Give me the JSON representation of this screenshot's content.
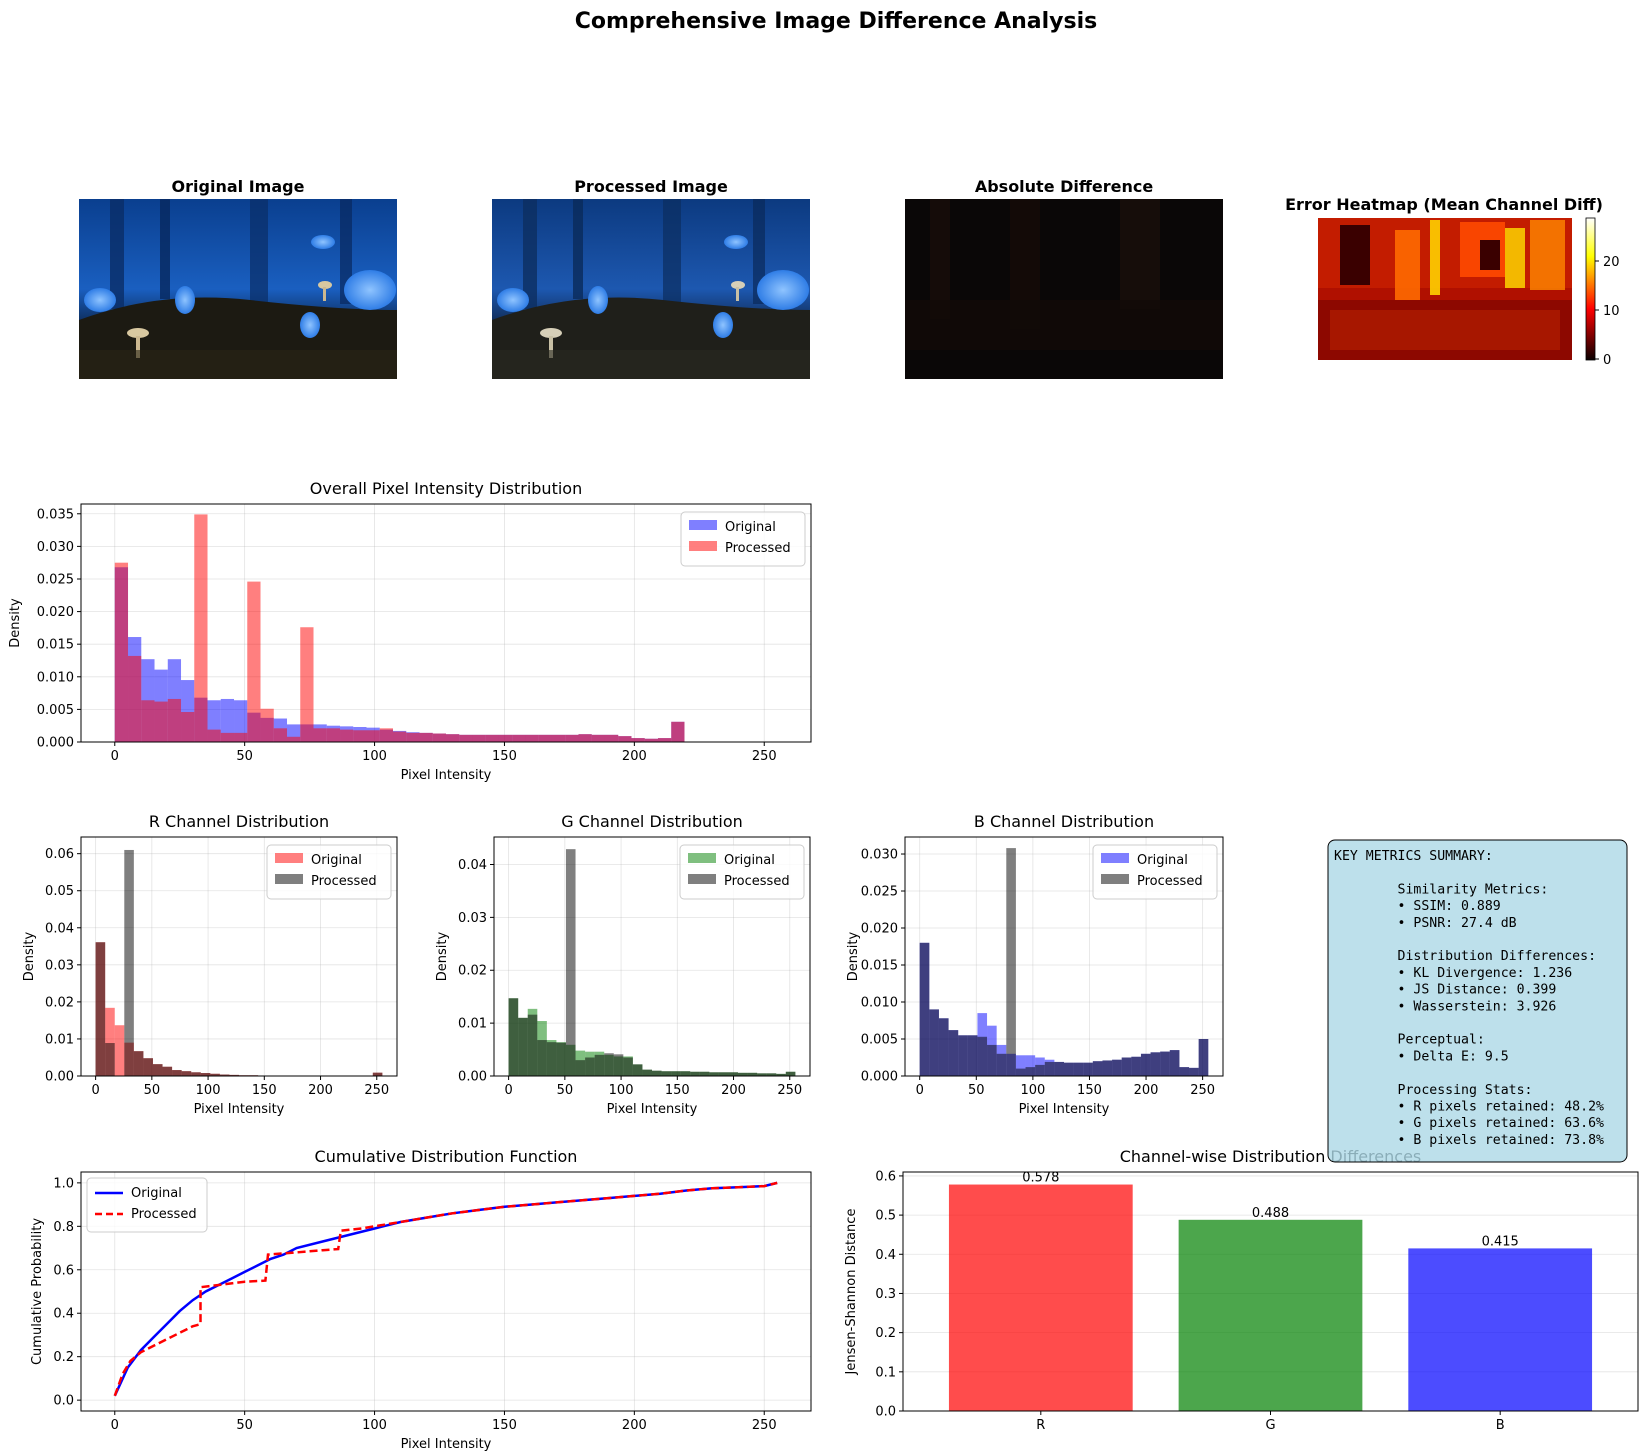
{
  "figure": {
    "suptitle": "Comprehensive Image Difference Analysis"
  },
  "image_panels": [
    {
      "title": "Original Image",
      "kind": "original"
    },
    {
      "title": "Processed Image",
      "kind": "processed"
    },
    {
      "title": "Absolute Difference",
      "kind": "difference"
    },
    {
      "title": "Error Heatmap (Mean Channel Diff)",
      "kind": "heatmap",
      "colorbar": {
        "ticks": [
          "0",
          "10",
          "20"
        ],
        "range": [
          0,
          29
        ],
        "colormap": "hot"
      }
    }
  ],
  "colors": {
    "original_blue": "#0000ff",
    "processed_red": "#ff0000",
    "overlap": "#b3006d",
    "gray": "#808080",
    "green": "#008000",
    "navy": "#1f1f66",
    "metrics_box_bg": "#add8e6"
  },
  "metrics_box": {
    "lines": [
      "KEY METRICS SUMMARY:",
      "",
      "        Similarity Metrics:",
      "        • SSIM: 0.889",
      "        • PSNR: 27.4 dB",
      "",
      "        Distribution Differences:",
      "        • KL Divergence: 1.236",
      "        • JS Distance: 0.399",
      "        • Wasserstein: 3.926",
      "",
      "        Perceptual:",
      "        • Delta E: 9.5",
      "",
      "        Processing Stats:",
      "        • R pixels retained: 48.2%",
      "        • G pixels retained: 63.6%",
      "        • B pixels retained: 73.8%"
    ]
  },
  "chart_data": [
    {
      "id": "overall",
      "type": "bar",
      "title": "Overall Pixel Intensity Distribution",
      "xlabel": "Pixel Intensity",
      "ylabel": "Density",
      "xlim": [
        -13,
        268
      ],
      "ylim": [
        0,
        0.0365
      ],
      "xticks": [
        0,
        50,
        100,
        150,
        200,
        250
      ],
      "yticks": [
        0.0,
        0.005,
        0.01,
        0.015,
        0.02,
        0.025,
        0.03,
        0.035
      ],
      "ytick_format": "3",
      "grid": true,
      "legend": "top-right",
      "bin_width": 5.1,
      "series": [
        {
          "name": "Original",
          "color": "#0000ff",
          "values": [
            0.0268,
            0.0161,
            0.0127,
            0.0111,
            0.0127,
            0.0095,
            0.0068,
            0.0064,
            0.0066,
            0.0064,
            0.0045,
            0.0037,
            0.0036,
            0.0027,
            0.0027,
            0.0027,
            0.0025,
            0.0024,
            0.0023,
            0.0022,
            0.0019,
            0.0017,
            0.0015,
            0.0014,
            0.0013,
            0.0012,
            0.0011,
            0.0011,
            0.0011,
            0.0011,
            0.0011,
            0.0011,
            0.0011,
            0.0011,
            0.0011,
            0.0012,
            0.0011,
            0.0011,
            0.0009,
            0.0006,
            0.0005,
            0.0006,
            0.0031
          ]
        },
        {
          "name": "Processed",
          "color": "#ff0000",
          "values": [
            0.0275,
            0.0132,
            0.0064,
            0.0062,
            0.0066,
            0.0046,
            0.0349,
            0.0019,
            0.0014,
            0.0014,
            0.0246,
            0.0051,
            0.0021,
            0.0008,
            0.0176,
            0.0021,
            0.0021,
            0.0019,
            0.0018,
            0.0018,
            0.0021,
            0.0016,
            0.0014,
            0.0014,
            0.0013,
            0.0012,
            0.0011,
            0.0011,
            0.0011,
            0.0011,
            0.0011,
            0.0011,
            0.0011,
            0.0011,
            0.0011,
            0.0012,
            0.0011,
            0.0011,
            0.0009,
            0.0006,
            0.0005,
            0.0006,
            0.0031
          ]
        }
      ]
    },
    {
      "id": "r_channel",
      "type": "bar",
      "title": "R Channel Distribution",
      "xlabel": "Pixel Intensity",
      "ylabel": "Density",
      "xlim": [
        -13,
        268
      ],
      "ylim": [
        0,
        0.0645
      ],
      "xticks": [
        0,
        50,
        100,
        150,
        200,
        250
      ],
      "yticks": [
        0.0,
        0.01,
        0.02,
        0.03,
        0.04,
        0.05,
        0.06
      ],
      "ytick_format": "2",
      "grid": true,
      "legend": "top-right",
      "bin_width": 8.5,
      "series": [
        {
          "name": "Original",
          "color": "#ff0000",
          "values": [
            0.0361,
            0.0184,
            0.0137,
            0.009,
            0.0067,
            0.0048,
            0.0032,
            0.0025,
            0.0016,
            0.0013,
            0.001,
            0.0008,
            0.0006,
            0.0004,
            0.0003,
            0.0002,
            0.0002,
            0.0001,
            0.0001,
            0.0001,
            0.0001,
            0.0001,
            0.0001,
            0.0001,
            0.0001,
            0.0001,
            0.0001,
            0.0001,
            0.0001,
            0.0009
          ]
        },
        {
          "name": "Processed",
          "color": "#000000",
          "values": [
            0.0361,
            0.0089,
            0,
            0.061,
            0.0067,
            0.0048,
            0.0032,
            0.0025,
            0.0016,
            0.0013,
            0.001,
            0.0008,
            0.0006,
            0.0004,
            0.0003,
            0.0002,
            0.0002,
            0.0001,
            0.0001,
            0.0001,
            0.0001,
            0.0001,
            0.0001,
            0.0001,
            0.0001,
            0.0001,
            0.0001,
            0.0001,
            0.0001,
            0.0009
          ]
        }
      ]
    },
    {
      "id": "g_channel",
      "type": "bar",
      "title": "G Channel Distribution",
      "xlabel": "Pixel Intensity",
      "ylabel": "Density",
      "xlim": [
        -13,
        268
      ],
      "ylim": [
        0,
        0.0452
      ],
      "xticks": [
        0,
        50,
        100,
        150,
        200,
        250
      ],
      "yticks": [
        0.0,
        0.01,
        0.02,
        0.03,
        0.04
      ],
      "ytick_format": "2",
      "grid": true,
      "legend": "top-right",
      "bin_width": 8.5,
      "series": [
        {
          "name": "Original",
          "color": "#008000",
          "values": [
            0.0147,
            0.011,
            0.0127,
            0.0104,
            0.0068,
            0.0064,
            0.0059,
            0.0048,
            0.0046,
            0.0046,
            0.004,
            0.0037,
            0.0037,
            0.0022,
            0.0012,
            0.001,
            0.0009,
            0.0009,
            0.0009,
            0.0008,
            0.0008,
            0.0007,
            0.0007,
            0.0007,
            0.0006,
            0.0006,
            0.0005,
            0.0005,
            0.0004,
            0.0008
          ]
        },
        {
          "name": "Processed",
          "color": "#000000",
          "values": [
            0.0147,
            0.011,
            0.0116,
            0.0068,
            0.0064,
            0.0063,
            0.0429,
            0.003,
            0.0035,
            0.004,
            0.0043,
            0.0041,
            0.0035,
            0.0022,
            0.0012,
            0.001,
            0.0009,
            0.0009,
            0.0009,
            0.0008,
            0.0008,
            0.0007,
            0.0007,
            0.0007,
            0.0006,
            0.0006,
            0.0005,
            0.0005,
            0.0004,
            0.0008
          ]
        }
      ]
    },
    {
      "id": "b_channel",
      "type": "bar",
      "title": "B Channel Distribution",
      "xlabel": "Pixel Intensity",
      "ylabel": "Density",
      "xlim": [
        -13,
        268
      ],
      "ylim": [
        0,
        0.0323
      ],
      "xticks": [
        0,
        50,
        100,
        150,
        200,
        250
      ],
      "yticks": [
        0.0,
        0.005,
        0.01,
        0.015,
        0.02,
        0.025,
        0.03
      ],
      "ytick_format": "3",
      "grid": true,
      "legend": "top-right",
      "bin_width": 8.5,
      "series": [
        {
          "name": "Original",
          "color": "#0000ff",
          "values": [
            0.018,
            0.009,
            0.0078,
            0.0062,
            0.0055,
            0.0055,
            0.0085,
            0.0068,
            0.0042,
            0.003,
            0.0028,
            0.0028,
            0.0025,
            0.0022,
            0.0019,
            0.0018,
            0.0018,
            0.0018,
            0.002,
            0.0021,
            0.0022,
            0.0025,
            0.0026,
            0.003,
            0.0032,
            0.0033,
            0.0035,
            0.0012,
            0.0011,
            0.005
          ]
        },
        {
          "name": "Processed",
          "color": "#000000",
          "values": [
            0.018,
            0.009,
            0.0078,
            0.0062,
            0.0055,
            0.0055,
            0.0053,
            0.0042,
            0.003,
            0.0308,
            0.001,
            0.0012,
            0.0015,
            0.0019,
            0.0019,
            0.0018,
            0.0018,
            0.0018,
            0.002,
            0.0021,
            0.0022,
            0.0025,
            0.0026,
            0.003,
            0.0032,
            0.0033,
            0.0035,
            0.0012,
            0.0011,
            0.005
          ]
        }
      ]
    },
    {
      "id": "cdf",
      "type": "line",
      "title": "Cumulative Distribution Function",
      "xlabel": "Pixel Intensity",
      "ylabel": "Cumulative Probability",
      "xlim": [
        -13,
        268
      ],
      "ylim": [
        -0.05,
        1.05
      ],
      "xticks": [
        0,
        50,
        100,
        150,
        200,
        250
      ],
      "yticks": [
        0.0,
        0.2,
        0.4,
        0.6,
        0.8,
        1.0
      ],
      "ytick_format": "1",
      "grid": true,
      "legend": "top-left",
      "series": [
        {
          "name": "Original",
          "color": "#0000ff",
          "style": "solid",
          "x": [
            0,
            5,
            10,
            15,
            20,
            25,
            30,
            35,
            40,
            45,
            50,
            55,
            60,
            65,
            70,
            80,
            90,
            100,
            110,
            120,
            130,
            140,
            150,
            160,
            170,
            180,
            190,
            200,
            210,
            220,
            230,
            240,
            250,
            255
          ],
          "y": [
            0.02,
            0.15,
            0.23,
            0.29,
            0.35,
            0.41,
            0.46,
            0.5,
            0.53,
            0.56,
            0.59,
            0.62,
            0.65,
            0.67,
            0.7,
            0.73,
            0.76,
            0.79,
            0.82,
            0.84,
            0.86,
            0.875,
            0.89,
            0.9,
            0.91,
            0.92,
            0.93,
            0.94,
            0.95,
            0.965,
            0.975,
            0.98,
            0.985,
            1.0
          ]
        },
        {
          "name": "Processed",
          "color": "#ff0000",
          "style": "dashed",
          "x": [
            0,
            3,
            6,
            10,
            15,
            20,
            25,
            30,
            33,
            33,
            40,
            50,
            58,
            59,
            70,
            80,
            86,
            87,
            95,
            100,
            110,
            120,
            130,
            140,
            150,
            160,
            170,
            180,
            190,
            200,
            210,
            220,
            230,
            240,
            250,
            255
          ],
          "y": [
            0.02,
            0.12,
            0.18,
            0.22,
            0.25,
            0.28,
            0.31,
            0.34,
            0.35,
            0.52,
            0.53,
            0.545,
            0.55,
            0.67,
            0.68,
            0.69,
            0.695,
            0.78,
            0.79,
            0.8,
            0.82,
            0.84,
            0.86,
            0.875,
            0.89,
            0.9,
            0.91,
            0.92,
            0.93,
            0.94,
            0.95,
            0.965,
            0.975,
            0.98,
            0.985,
            1.0
          ]
        }
      ]
    },
    {
      "id": "channel_js",
      "type": "bar",
      "title": "Channel-wise Distribution Differences",
      "xlabel": "",
      "ylabel": "Jensen-Shannon Distance",
      "categories": [
        "R",
        "G",
        "B"
      ],
      "values": [
        0.578,
        0.488,
        0.415
      ],
      "labels": [
        "0.578",
        "0.488",
        "0.415"
      ],
      "colors": [
        "#ff0000",
        "#008000",
        "#0000ff"
      ],
      "ylim": [
        0,
        0.61
      ],
      "yticks": [
        0.0,
        0.1,
        0.2,
        0.3,
        0.4,
        0.5,
        0.6
      ],
      "ytick_format": "1",
      "grid": true
    }
  ]
}
